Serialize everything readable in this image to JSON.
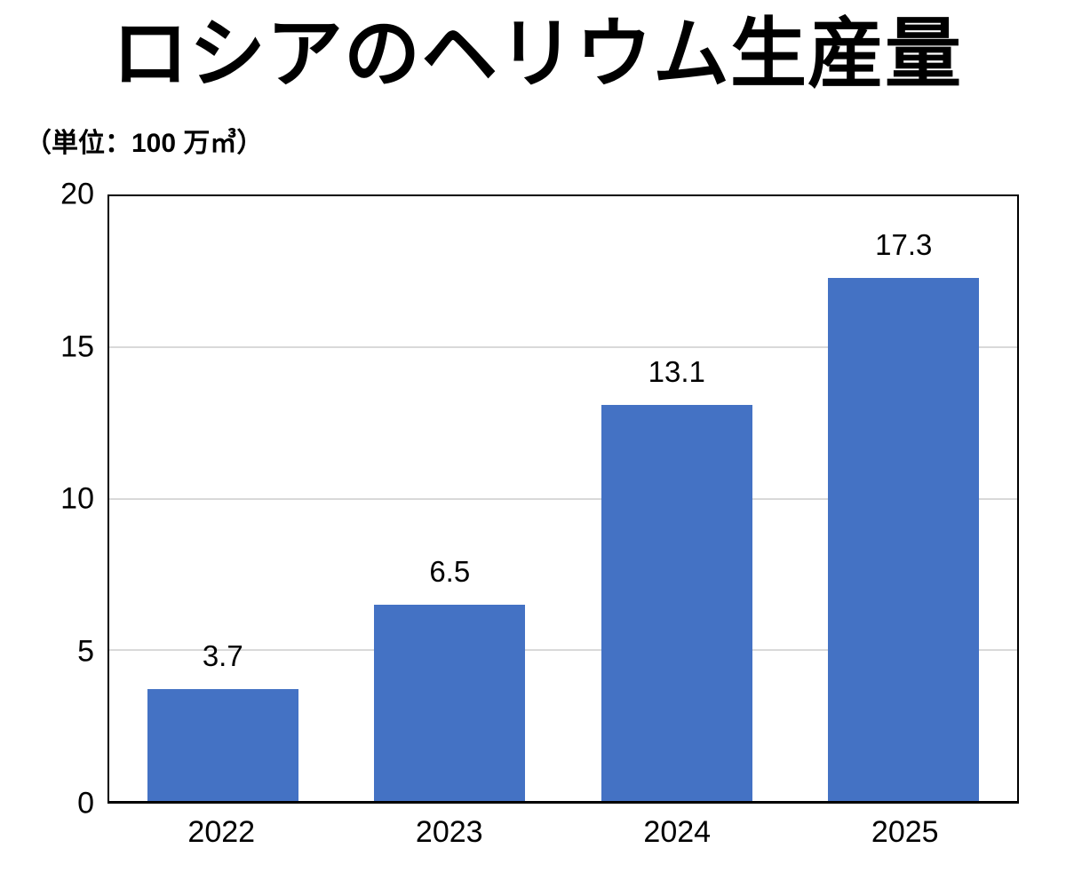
{
  "chart_data": {
    "type": "bar",
    "title": "ロシアのヘリウム生産量",
    "unit_label": "（単位：100 万㎥）",
    "categories": [
      "2022",
      "2023",
      "2024",
      "2025"
    ],
    "values": [
      3.7,
      6.5,
      13.1,
      17.3
    ],
    "value_labels": [
      "3.7",
      "6.5",
      "13.1",
      "17.3"
    ],
    "ylim": [
      0,
      20
    ],
    "yticks": [
      0,
      5,
      10,
      15,
      20
    ],
    "ytick_labels": [
      "0",
      "5",
      "10",
      "15",
      "20"
    ],
    "xlabel": "",
    "ylabel": "",
    "grid": true,
    "gridline_values": [
      5,
      10,
      15
    ],
    "legend_position": "none",
    "colors": {
      "bar": "#4472C4",
      "gridline": "#D9D9D9",
      "axis_border": "#000000",
      "text": "#000000",
      "background": "#FFFFFF"
    }
  }
}
